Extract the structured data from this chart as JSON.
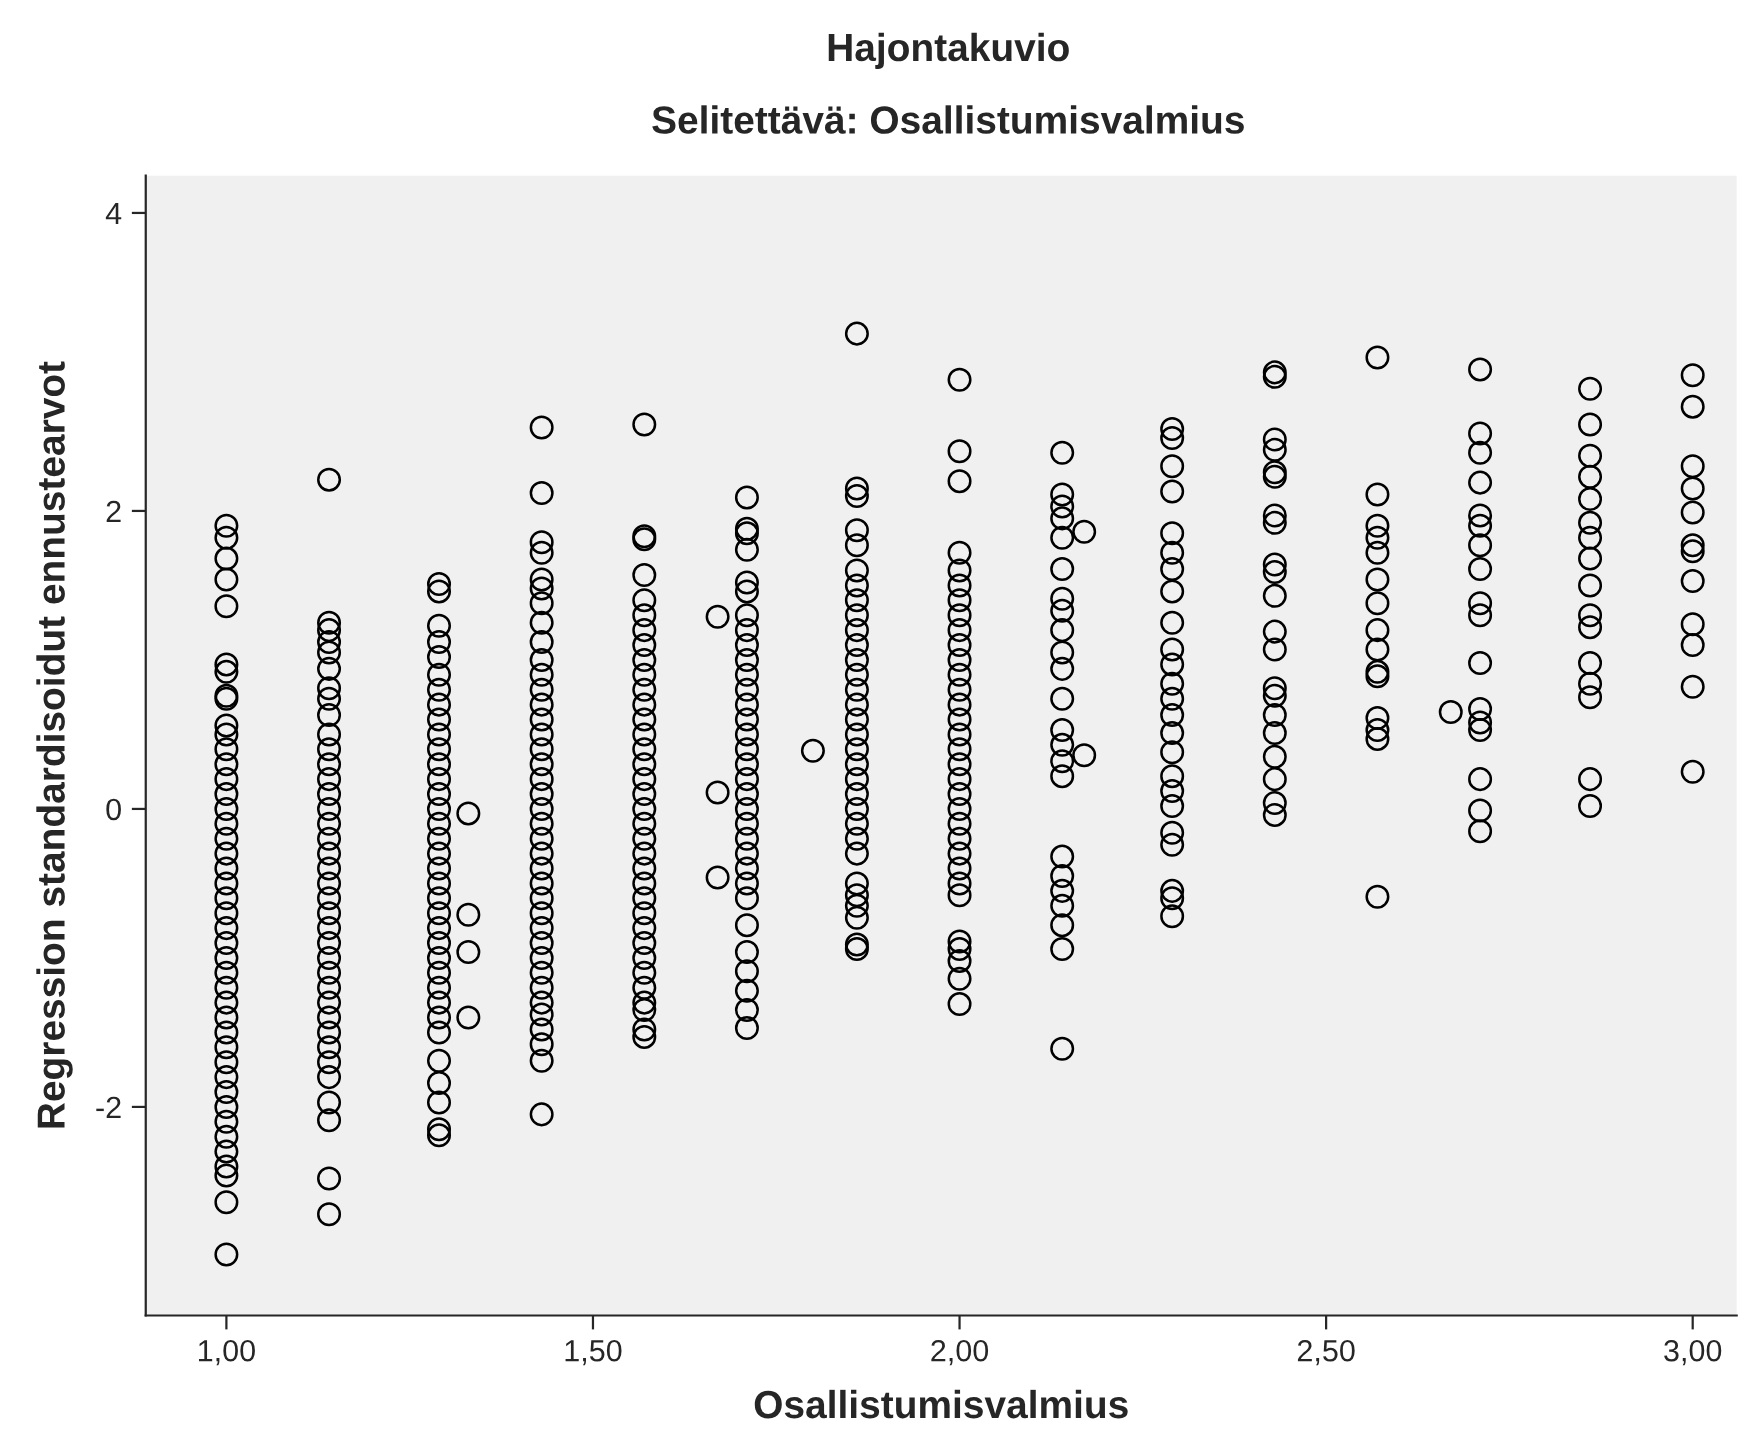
{
  "chart_data": {
    "type": "scatter",
    "title": "Hajontakuvio",
    "subtitle": "Selitettävä: Osallistumisvalmius",
    "xlabel": "Osallistumisvalmius",
    "ylabel": "Regression standardisoidut ennustearvot",
    "xlim": [
      0.89,
      3.06
    ],
    "ylim": [
      -3.4,
      4.25
    ],
    "xticks": [
      {
        "value": 1,
        "label": "1,00"
      },
      {
        "value": 1.5,
        "label": "1,50"
      },
      {
        "value": 2,
        "label": "2,00"
      },
      {
        "value": 2.5,
        "label": "2,50"
      },
      {
        "value": 3,
        "label": "3,00"
      }
    ],
    "yticks": [
      -2,
      0,
      2,
      4
    ],
    "grid": false,
    "legend": false,
    "marker": "circle",
    "series": [
      {
        "color": "#000000",
        "x": [
          1,
          1,
          1,
          1,
          1,
          1,
          1,
          1,
          1,
          1,
          1,
          1,
          1,
          1,
          1,
          1,
          1,
          1,
          1,
          1,
          1,
          1,
          1,
          1,
          1,
          1,
          1,
          1,
          1,
          1,
          1,
          1,
          1,
          1,
          1,
          1,
          1,
          1,
          1,
          1,
          1,
          1,
          1
        ],
        "values": [
          1.9,
          1.82,
          1.68,
          1.54,
          1.36,
          0.97,
          0.92,
          0.76,
          0.74,
          0.56,
          0.5,
          0.4,
          0.3,
          0.2,
          0.1,
          0,
          -0.1,
          -0.2,
          -0.3,
          -0.4,
          -0.5,
          -0.6,
          -0.7,
          -0.8,
          -0.9,
          -1,
          -1.1,
          -1.2,
          -1.3,
          -1.4,
          -1.5,
          -1.6,
          -1.7,
          -1.8,
          -1.9,
          -2,
          -2.1,
          -2.2,
          -2.3,
          -2.4,
          -2.46,
          -2.64,
          -2.99
        ]
      },
      {
        "color": "#000000",
        "x": [
          1.14,
          1.14,
          1.14,
          1.14,
          1.14,
          1.14,
          1.14,
          1.14,
          1.14,
          1.14,
          1.14,
          1.14,
          1.14,
          1.14,
          1.14,
          1.14,
          1.14,
          1.14,
          1.14,
          1.14,
          1.14,
          1.14,
          1.14,
          1.14,
          1.14,
          1.14,
          1.14,
          1.14,
          1.14,
          1.14,
          1.14,
          1.14,
          1.14,
          1.14,
          1.14,
          1.14
        ],
        "values": [
          2.21,
          1.25,
          1.2,
          1.12,
          1.05,
          0.94,
          0.81,
          0.74,
          0.63,
          0.5,
          0.4,
          0.3,
          0.2,
          0.1,
          0,
          -0.1,
          -0.2,
          -0.3,
          -0.4,
          -0.5,
          -0.6,
          -0.7,
          -0.8,
          -0.9,
          -1,
          -1.1,
          -1.2,
          -1.3,
          -1.4,
          -1.5,
          -1.6,
          -1.7,
          -1.8,
          -1.97,
          -2.09,
          -2.48
        ]
      },
      {
        "color": "#000000",
        "x": [
          1.14
        ],
        "values": [
          -2.72
        ]
      },
      {
        "color": "#000000",
        "x": [
          1.29,
          1.29,
          1.29,
          1.29,
          1.29,
          1.29,
          1.29,
          1.29,
          1.29,
          1.29,
          1.29,
          1.29,
          1.29,
          1.29,
          1.29,
          1.29,
          1.29,
          1.29,
          1.29,
          1.29,
          1.29,
          1.29,
          1.29,
          1.29,
          1.29,
          1.29,
          1.29,
          1.29,
          1.29,
          1.29,
          1.29,
          1.29,
          1.29,
          1.29,
          1.29
        ],
        "values": [
          1.51,
          1.46,
          1.23,
          1.12,
          1.02,
          0.9,
          0.8,
          0.7,
          0.6,
          0.5,
          0.4,
          0.3,
          0.2,
          0.1,
          0,
          -0.1,
          -0.2,
          -0.3,
          -0.4,
          -0.5,
          -0.6,
          -0.7,
          -0.8,
          -0.9,
          -1,
          -1.1,
          -1.2,
          -1.3,
          -1.4,
          -1.5,
          -1.69,
          -1.84,
          -1.97,
          -2.15,
          -2.19
        ]
      },
      {
        "color": "#000000",
        "x": [
          1.33,
          1.33,
          1.33,
          1.33
        ],
        "values": [
          -0.03,
          -0.71,
          -0.96,
          -1.4
        ]
      },
      {
        "color": "#000000",
        "x": [
          1.43,
          1.43,
          1.43,
          1.43,
          1.43,
          1.43,
          1.43,
          1.43,
          1.43,
          1.43,
          1.43,
          1.43,
          1.43,
          1.43,
          1.43,
          1.43,
          1.43,
          1.43,
          1.43,
          1.43,
          1.43,
          1.43,
          1.43,
          1.43,
          1.43,
          1.43,
          1.43,
          1.43,
          1.43,
          1.43,
          1.43,
          1.43,
          1.43,
          1.43,
          1.43,
          1.43,
          1.43
        ],
        "values": [
          2.56,
          2.12,
          1.79,
          1.72,
          1.54,
          1.48,
          1.38,
          1.25,
          1.12,
          1,
          0.9,
          0.8,
          0.7,
          0.6,
          0.5,
          0.4,
          0.3,
          0.2,
          0.1,
          0,
          -0.1,
          -0.2,
          -0.3,
          -0.4,
          -0.5,
          -0.6,
          -0.7,
          -0.8,
          -0.9,
          -1,
          -1.1,
          -1.2,
          -1.3,
          -1.38,
          -1.48,
          -1.58,
          -1.69
        ]
      },
      {
        "color": "#000000",
        "x": [
          1.43
        ],
        "values": [
          -2.05
        ]
      },
      {
        "color": "#000000",
        "x": [
          1.57,
          1.57,
          1.57,
          1.57,
          1.57,
          1.57,
          1.57,
          1.57,
          1.57,
          1.57,
          1.57,
          1.57,
          1.57,
          1.57,
          1.57,
          1.57,
          1.57,
          1.57,
          1.57,
          1.57,
          1.57,
          1.57,
          1.57,
          1.57,
          1.57,
          1.57,
          1.57,
          1.57,
          1.57,
          1.57,
          1.57,
          1.57,
          1.57,
          1.57
        ],
        "values": [
          2.58,
          1.83,
          1.81,
          1.57,
          1.4,
          1.3,
          1.2,
          1.1,
          1,
          0.9,
          0.8,
          0.7,
          0.6,
          0.5,
          0.4,
          0.3,
          0.2,
          0.1,
          0,
          -0.1,
          -0.2,
          -0.3,
          -0.4,
          -0.5,
          -0.6,
          -0.7,
          -0.8,
          -0.9,
          -1,
          -1.1,
          -1.2,
          -1.3,
          -1.35,
          -1.48
        ]
      },
      {
        "color": "#000000",
        "x": [
          1.57
        ],
        "values": [
          -1.53
        ]
      },
      {
        "color": "#000000",
        "x": [
          1.67,
          1.67,
          1.67
        ],
        "values": [
          1.29,
          0.11,
          -0.46
        ]
      },
      {
        "color": "#000000",
        "x": [
          1.71,
          1.71,
          1.71,
          1.71,
          1.71,
          1.71,
          1.71,
          1.71,
          1.71,
          1.71,
          1.71,
          1.71,
          1.71,
          1.71,
          1.71,
          1.71,
          1.71,
          1.71,
          1.71,
          1.71,
          1.71,
          1.71,
          1.71,
          1.71,
          1.71,
          1.71,
          1.71,
          1.71,
          1.71,
          1.71,
          1.71
        ],
        "values": [
          2.09,
          1.88,
          1.85,
          1.74,
          1.52,
          1.46,
          1.3,
          1.2,
          1.1,
          1,
          0.9,
          0.8,
          0.7,
          0.6,
          0.5,
          0.4,
          0.3,
          0.2,
          0.1,
          0,
          -0.1,
          -0.2,
          -0.3,
          -0.4,
          -0.5,
          -0.6,
          -0.78,
          -0.96,
          -1.09,
          -1.22,
          -1.35
        ]
      },
      {
        "color": "#000000",
        "x": [
          1.71
        ],
        "values": [
          -1.47
        ]
      },
      {
        "color": "#000000",
        "x": [
          1.8
        ],
        "values": [
          0.39
        ]
      },
      {
        "color": "#000000",
        "x": [
          1.86,
          1.86,
          1.86,
          1.86,
          1.86,
          1.86,
          1.86,
          1.86,
          1.86,
          1.86,
          1.86,
          1.86,
          1.86,
          1.86,
          1.86,
          1.86,
          1.86,
          1.86,
          1.86,
          1.86,
          1.86,
          1.86,
          1.86,
          1.86,
          1.86,
          1.86,
          1.86,
          1.86,
          1.86,
          1.86
        ],
        "values": [
          3.19,
          2.15,
          2.1,
          1.87,
          1.77,
          1.6,
          1.5,
          1.4,
          1.3,
          1.2,
          1.1,
          1,
          0.9,
          0.8,
          0.7,
          0.6,
          0.5,
          0.4,
          0.3,
          0.2,
          0.1,
          0,
          -0.1,
          -0.2,
          -0.3,
          -0.5,
          -0.58,
          -0.65,
          -0.73,
          -0.91
        ]
      },
      {
        "color": "#000000",
        "x": [
          1.86
        ],
        "values": [
          -0.94
        ]
      },
      {
        "color": "#000000",
        "x": [
          2,
          2,
          2,
          2,
          2,
          2,
          2,
          2,
          2,
          2,
          2,
          2,
          2,
          2,
          2,
          2,
          2,
          2,
          2,
          2,
          2,
          2,
          2,
          2,
          2,
          2,
          2,
          2,
          2,
          2,
          2
        ],
        "values": [
          2.88,
          2.4,
          2.2,
          1.72,
          1.6,
          1.5,
          1.4,
          1.3,
          1.2,
          1.1,
          1,
          0.9,
          0.8,
          0.7,
          0.6,
          0.5,
          0.4,
          0.3,
          0.2,
          0.1,
          0,
          -0.1,
          -0.2,
          -0.3,
          -0.4,
          -0.5,
          -0.58,
          -0.89,
          -0.94,
          -1.02,
          -1.14
        ]
      },
      {
        "color": "#000000",
        "x": [
          2
        ],
        "values": [
          -1.31
        ]
      },
      {
        "color": "#000000",
        "x": [
          2.14,
          2.14,
          2.14,
          2.14,
          2.14,
          2.14,
          2.14,
          2.14,
          2.14,
          2.14,
          2.14,
          2.14,
          2.14,
          2.14,
          2.14,
          2.14,
          2.14,
          2.14,
          2.14,
          2.14,
          2.14,
          2.14,
          2.14
        ],
        "values": [
          2.39,
          2.11,
          2.03,
          1.95,
          1.82,
          1.61,
          1.41,
          1.33,
          1.2,
          1.05,
          0.94,
          0.74,
          0.53,
          0.43,
          0.32,
          0.22,
          -0.32,
          -0.45,
          -0.55,
          -0.65,
          -0.78,
          -0.94,
          -1.61
        ]
      },
      {
        "color": "#000000",
        "x": [
          2.17,
          2.17
        ],
        "values": [
          1.86,
          0.36
        ]
      },
      {
        "color": "#000000",
        "x": [
          2.29,
          2.29,
          2.29,
          2.29,
          2.29,
          2.29,
          2.29,
          2.29,
          2.29,
          2.29,
          2.29,
          2.29,
          2.29,
          2.29,
          2.29,
          2.29,
          2.29,
          2.29,
          2.29,
          2.29,
          2.29,
          2.29,
          2.29,
          2.29
        ],
        "values": [
          2.55,
          2.49,
          2.3,
          2.13,
          1.85,
          1.72,
          1.61,
          1.46,
          1.25,
          1.07,
          0.97,
          0.84,
          0.74,
          0.63,
          0.51,
          0.38,
          0.22,
          0.12,
          0.02,
          -0.16,
          -0.24,
          -0.55,
          -0.6,
          -0.72
        ]
      },
      {
        "color": "#000000",
        "x": [
          2.43,
          2.43,
          2.43,
          2.43,
          2.43,
          2.43,
          2.43,
          2.43,
          2.43,
          2.43,
          2.43,
          2.43,
          2.43,
          2.43,
          2.43,
          2.43,
          2.43,
          2.43,
          2.43,
          2.43,
          2.43
        ],
        "values": [
          2.93,
          2.9,
          2.48,
          2.41,
          2.26,
          2.23,
          1.97,
          1.92,
          1.64,
          1.59,
          1.43,
          1.19,
          1.07,
          0.81,
          0.76,
          0.63,
          0.51,
          0.35,
          0.2,
          0.04,
          -0.04
        ]
      },
      {
        "color": "#000000",
        "x": [
          2.57,
          2.57,
          2.57,
          2.57,
          2.57,
          2.57,
          2.57,
          2.57,
          2.57,
          2.57,
          2.57,
          2.57,
          2.57,
          2.57,
          2.57
        ],
        "values": [
          3.03,
          2.11,
          1.9,
          1.82,
          1.72,
          1.54,
          1.38,
          1.2,
          1.07,
          0.92,
          0.89,
          0.61,
          0.53,
          0.47,
          -0.59
        ]
      },
      {
        "color": "#000000",
        "x": [
          2.67
        ],
        "values": [
          0.65
        ]
      },
      {
        "color": "#000000",
        "x": [
          2.71,
          2.71,
          2.71,
          2.71,
          2.71,
          2.71,
          2.71,
          2.71,
          2.71,
          2.71,
          2.71,
          2.71,
          2.71,
          2.71,
          2.71,
          2.71,
          2.71
        ],
        "values": [
          2.95,
          2.52,
          2.39,
          2.19,
          1.97,
          1.9,
          1.77,
          1.61,
          1.38,
          1.3,
          0.98,
          0.67,
          0.58,
          0.53,
          0.2,
          -0.01,
          -0.15
        ]
      },
      {
        "color": "#000000",
        "x": [
          2.86,
          2.86,
          2.86,
          2.86,
          2.86,
          2.86,
          2.86,
          2.86,
          2.86,
          2.86,
          2.86,
          2.86,
          2.86,
          2.86,
          2.86,
          2.86
        ],
        "values": [
          2.82,
          2.58,
          2.37,
          2.23,
          2.08,
          1.92,
          1.82,
          1.68,
          1.5,
          1.3,
          1.22,
          0.98,
          0.84,
          0.75,
          0.2,
          0.02
        ]
      },
      {
        "color": "#000000",
        "x": [
          3,
          3,
          3,
          3,
          3,
          3,
          3,
          3,
          3,
          3,
          3,
          3
        ],
        "values": [
          2.91,
          2.7,
          2.3,
          2.15,
          1.99,
          1.77,
          1.73,
          1.53,
          1.24,
          1.1,
          0.82,
          0.25
        ]
      }
    ]
  }
}
